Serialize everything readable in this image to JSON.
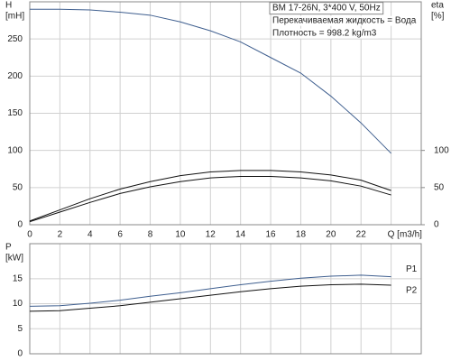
{
  "chart_data": [
    {
      "type": "line",
      "ylabel": "H",
      "yunit": "[mH]",
      "y2label": "eta",
      "y2unit": "[%]",
      "annotations": [
        "BM 17-26N, 3*400 V, 50Hz",
        "Перекачиваемая жидкость = Вода",
        "Плотность = 998.2 kg/m3"
      ],
      "xlim": [
        0,
        26
      ],
      "xticks": [
        0,
        2,
        4,
        6,
        8,
        10,
        12,
        14,
        16,
        18,
        20,
        22,
        {
          "value": 24,
          "label": "Q [m3/h]"
        }
      ],
      "ylim": [
        0,
        300
      ],
      "yticks": [
        0,
        50,
        100,
        150,
        200,
        250
      ],
      "y2lim": [
        0,
        300
      ],
      "y2ticks": [
        0,
        50,
        100
      ],
      "grid": true,
      "x": [
        0,
        2,
        4,
        6,
        8,
        10,
        12,
        14,
        16,
        18,
        20,
        22,
        24
      ],
      "series": [
        {
          "color": "#3f5f8f",
          "values": [
            290,
            290,
            289,
            286,
            282,
            273,
            261,
            246,
            225,
            204,
            173,
            137,
            96
          ]
        },
        {
          "color": "#111111",
          "axis": "y2",
          "values": [
            5,
            20,
            35,
            48,
            58,
            66,
            71,
            73,
            73,
            71,
            67,
            60,
            46
          ]
        },
        {
          "color": "#111111",
          "axis": "y2",
          "values": [
            4,
            17,
            30,
            42,
            51,
            58,
            63,
            65,
            65,
            63,
            59,
            52,
            40
          ]
        }
      ]
    },
    {
      "type": "line",
      "ylabel": "P",
      "yunit": "[kW]",
      "xlim": [
        0,
        26
      ],
      "xticks": [
        0,
        2,
        4,
        6,
        8,
        10,
        12,
        14,
        16,
        18,
        20,
        22,
        24
      ],
      "ylim": [
        0,
        22
      ],
      "yticks": [
        0,
        5,
        10,
        15
      ],
      "grid": true,
      "x": [
        0,
        2,
        4,
        6,
        8,
        10,
        12,
        14,
        16,
        18,
        20,
        22,
        24
      ],
      "series": [
        {
          "name": "P1",
          "color": "#3f5f8f",
          "values": [
            9.5,
            9.6,
            10.1,
            10.7,
            11.5,
            12.2,
            13.0,
            13.8,
            14.5,
            15.1,
            15.5,
            15.7,
            15.4
          ]
        },
        {
          "name": "P2",
          "color": "#111111",
          "values": [
            8.5,
            8.6,
            9.1,
            9.6,
            10.3,
            11.0,
            11.7,
            12.4,
            13.0,
            13.5,
            13.8,
            13.9,
            13.7
          ]
        }
      ]
    }
  ]
}
